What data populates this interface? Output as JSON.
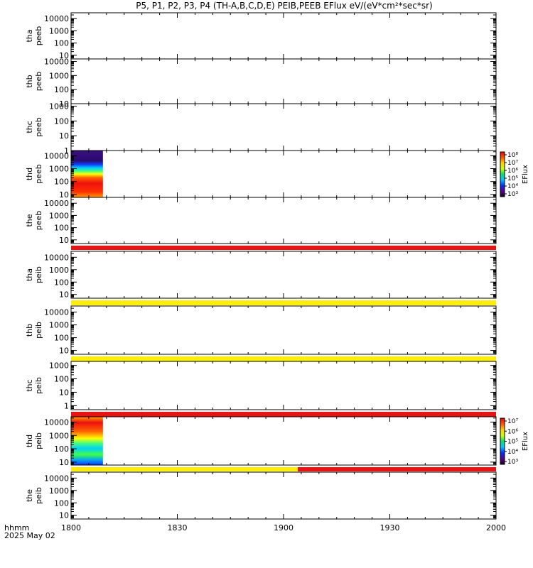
{
  "chart_data": {
    "type": "heatmap",
    "title": "P5, P1, P2, P3, P4 (TH-A,B,C,D,E) PEIB,PEEB EFlux eV/(eV*cm²*sec*sr)",
    "x_ticks": [
      "1800",
      "1830",
      "1900",
      "1930",
      "2000"
    ],
    "x_footer": [
      "hhmm",
      "2025 May 02"
    ],
    "colorbar_label": "EFlux",
    "panels": [
      {
        "id": "tha-peeb",
        "ylabel": [
          "tha",
          "peeb"
        ],
        "yticks": [
          "10000",
          "1000",
          "100",
          "10"
        ],
        "ylim": [
          5,
          30000
        ],
        "data": "none"
      },
      {
        "id": "thb-peeb",
        "ylabel": [
          "thb",
          "peeb"
        ],
        "yticks": [
          "10000",
          "1000",
          "100",
          "10"
        ],
        "ylim": [
          10,
          15000
        ],
        "data": "none"
      },
      {
        "id": "thc-peeb",
        "ylabel": [
          "thc",
          "peeb"
        ],
        "yticks": [
          "1000",
          "100",
          "10",
          "1"
        ],
        "ylim": [
          1,
          1500
        ],
        "data": "none"
      },
      {
        "id": "thd-peeb",
        "ylabel": [
          "thd",
          "peeb"
        ],
        "yticks": [
          "10000",
          "1000",
          "100",
          "10"
        ],
        "ylim": [
          6,
          25000
        ],
        "data": "spectrogram",
        "data_x_range": [
          "1800",
          "1809"
        ],
        "colorbar": {
          "ticks": [
            "10⁸",
            "10⁷",
            "10⁶",
            "10⁵",
            "10⁴",
            "10³"
          ]
        }
      },
      {
        "id": "the-peeb",
        "ylabel": [
          "the",
          "peeb"
        ],
        "yticks": [
          "10000",
          "1000",
          "100",
          "10"
        ],
        "ylim": [
          5,
          30000
        ],
        "data": "none"
      },
      {
        "id": "tha-peib",
        "ylabel": [
          "tha",
          "peib"
        ],
        "yticks": [
          "10000",
          "1000",
          "100",
          "10"
        ],
        "ylim": [
          5,
          30000
        ],
        "data": "none"
      },
      {
        "id": "thb-peib",
        "ylabel": [
          "thb",
          "peib"
        ],
        "yticks": [
          "10000",
          "1000",
          "100",
          "10"
        ],
        "ylim": [
          5,
          30000
        ],
        "data": "none"
      },
      {
        "id": "thc-peib",
        "ylabel": [
          "thc",
          "peib"
        ],
        "yticks": [
          "1000",
          "100",
          "10",
          "1"
        ],
        "ylim": [
          0.5,
          2000
        ],
        "data": "none"
      },
      {
        "id": "thd-peib",
        "ylabel": [
          "thd",
          "peib"
        ],
        "yticks": [
          "10000",
          "1000",
          "100",
          "10"
        ],
        "ylim": [
          6,
          25000
        ],
        "data": "spectrogram",
        "data_x_range": [
          "1800",
          "1809"
        ],
        "colorbar": {
          "ticks": [
            "10⁷",
            "10⁶",
            "10⁵",
            "10⁴",
            "10³"
          ]
        }
      },
      {
        "id": "the-peib",
        "ylabel": [
          "the",
          "peib"
        ],
        "yticks": [
          "10000",
          "1000",
          "100",
          "10"
        ],
        "ylim": [
          5,
          30000
        ],
        "data": "none"
      }
    ],
    "flag_bars": [
      {
        "after_panel": 4,
        "segments": [
          {
            "from": "1800",
            "to": "2000",
            "color": "#ee1111"
          }
        ]
      },
      {
        "after_panel": 5,
        "segments": [
          {
            "from": "1800",
            "to": "2000",
            "color": "#ffee00"
          }
        ]
      },
      {
        "after_panel": 6,
        "segments": [
          {
            "from": "1800",
            "to": "2000",
            "color": "#ffee00"
          }
        ]
      },
      {
        "after_panel": 7,
        "segments": [
          {
            "from": "1800",
            "to": "2000",
            "color": "#ee1111"
          }
        ]
      },
      {
        "after_panel": 8,
        "segments": [
          {
            "from": "1800",
            "to": "1904",
            "color": "#ffee00"
          },
          {
            "from": "1904",
            "to": "2000",
            "color": "#ee1111"
          }
        ]
      }
    ]
  }
}
